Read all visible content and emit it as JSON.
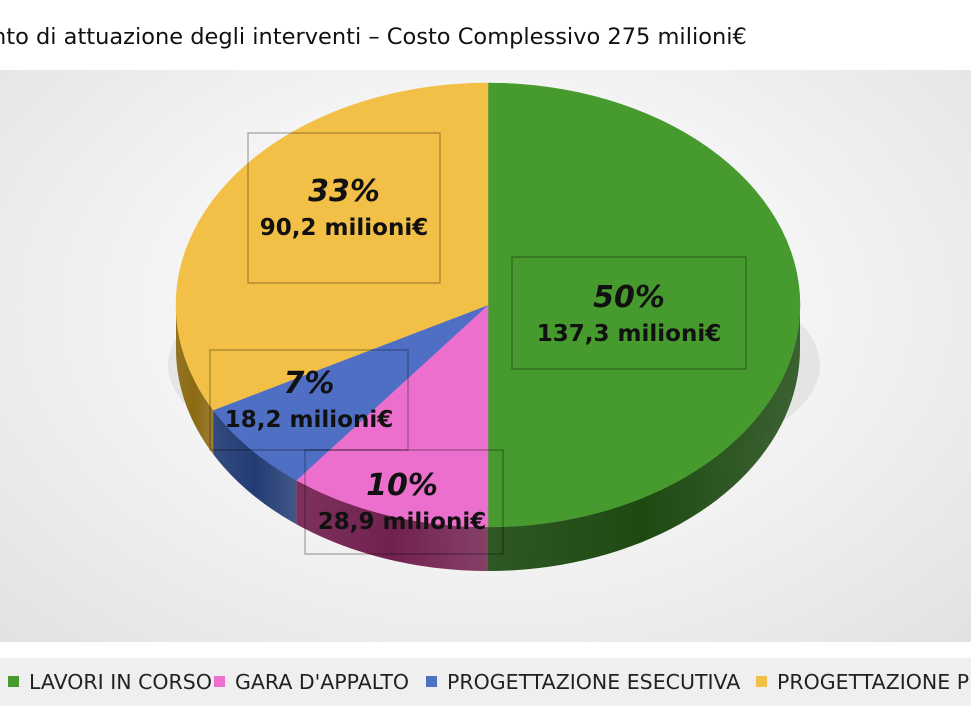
{
  "chart_data": {
    "type": "pie",
    "title": "nto di attuazione degli interventi – Costo Complessivo 275 milioni€",
    "categories": [
      "LAVORI IN CORSO",
      "GARA D'APPALTO",
      "PROGETTAZIONE ESECUTIVA",
      "PROGETTAZIONE PF"
    ],
    "percent_labels": [
      "50%",
      "10%",
      "7%",
      "33%"
    ],
    "value_labels": [
      "137,3 milioni€",
      "28,9 milioni€",
      "18,2 milioni€",
      "90,2 milioni€"
    ],
    "values": [
      137.3,
      28.9,
      18.2,
      90.2
    ],
    "unit": "milioni€",
    "colors": [
      "#479B2E",
      "#EC6FCD",
      "#4E6FC4",
      "#F2C046"
    ],
    "side_colors": [
      "#1E4A12",
      "#72214F",
      "#233C74",
      "#8C6A12"
    ],
    "legend_position": "bottom",
    "style": "3d"
  }
}
